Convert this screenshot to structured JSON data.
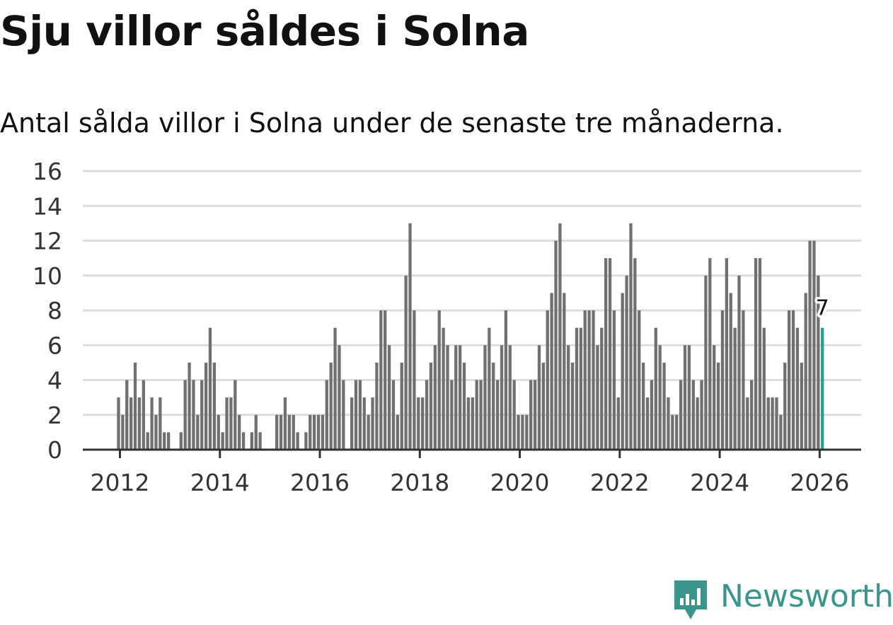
{
  "header": {
    "title": "Sju villor såldes i Solna",
    "subtitle": "Antal sålda villor i Solna under de senaste tre månaderna."
  },
  "branding": {
    "name": "Newsworthy",
    "logo_icon": "bar-chart-icon"
  },
  "colors": {
    "bar": "#707070",
    "highlight": "#2a9d94",
    "grid": "#dddddd",
    "axis": "#333333",
    "text": "#333333"
  },
  "chart_data": {
    "type": "bar",
    "title": "Antal sålda villor i Solna under de senaste tre månaderna.",
    "xlabel": "",
    "ylabel": "",
    "ylim": [
      0,
      16
    ],
    "yticks": [
      0,
      2,
      4,
      6,
      8,
      10,
      12,
      14,
      16
    ],
    "xticks": [
      "2012",
      "2014",
      "2016",
      "2018",
      "2020",
      "2022",
      "2024",
      "2026"
    ],
    "start": "2012-01",
    "frequency": "monthly",
    "values": [
      3,
      2,
      4,
      3,
      5,
      3,
      4,
      1,
      3,
      2,
      3,
      1,
      1,
      0,
      0,
      1,
      4,
      5,
      4,
      2,
      4,
      5,
      7,
      5,
      2,
      1,
      3,
      3,
      4,
      2,
      1,
      0,
      1,
      2,
      1,
      0,
      0,
      0,
      2,
      2,
      3,
      2,
      2,
      1,
      0,
      1,
      2,
      2,
      2,
      2,
      4,
      5,
      7,
      6,
      4,
      0,
      3,
      4,
      4,
      3,
      2,
      3,
      5,
      8,
      8,
      6,
      4,
      2,
      5,
      10,
      13,
      8,
      3,
      3,
      4,
      5,
      6,
      8,
      7,
      6,
      4,
      6,
      6,
      5,
      3,
      3,
      4,
      4,
      6,
      7,
      5,
      4,
      6,
      8,
      6,
      4,
      2,
      2,
      2,
      4,
      4,
      6,
      5,
      8,
      9,
      12,
      13,
      9,
      6,
      5,
      7,
      7,
      8,
      8,
      8,
      6,
      7,
      11,
      11,
      8,
      3,
      9,
      10,
      13,
      11,
      8,
      5,
      3,
      4,
      7,
      6,
      5,
      3,
      2,
      2,
      4,
      6,
      6,
      4,
      3,
      4,
      10,
      11,
      6,
      5,
      8,
      11,
      9,
      7,
      10,
      8,
      3,
      4,
      11,
      11,
      7,
      3,
      3,
      3,
      2,
      5,
      8,
      8,
      7,
      5,
      9,
      12,
      12,
      10,
      7
    ],
    "highlight_last": true,
    "annotation": {
      "label": "7",
      "target": "last"
    }
  }
}
